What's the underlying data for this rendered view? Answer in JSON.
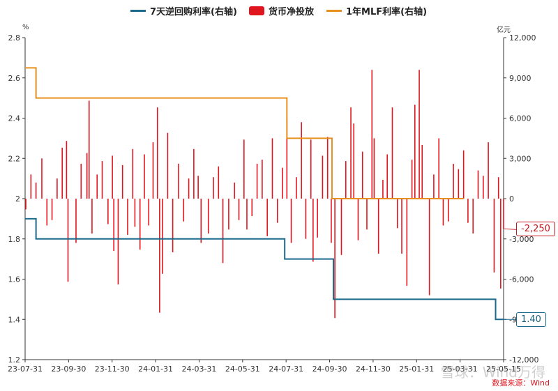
{
  "legend": {
    "repo": "7天逆回购利率(右轴)",
    "net": "货币净投放",
    "mlf": "1年MLF利率(右轴)"
  },
  "units": {
    "left": "%",
    "right": "亿元"
  },
  "source": "数据来源：Wind",
  "watermark": "雪球：Wind万得",
  "callouts": {
    "net_last": "-2,250",
    "repo_last": "1.40"
  },
  "colors": {
    "repo": "#1b6a8c",
    "net": "#e0161f",
    "mlf": "#e8901e",
    "axis": "#333333",
    "grid": "#e6e6e6"
  },
  "chart_data": {
    "type": "bar+line",
    "x_range": [
      "2023-07-31",
      "2025-05-19"
    ],
    "x_ticks": [
      "23-07-31",
      "23-09-30",
      "23-11-30",
      "24-01-31",
      "24-03-31",
      "24-05-31",
      "24-07-31",
      "24-09-30",
      "24-11-30",
      "25-01-31",
      "25-03-31",
      "25-05-15"
    ],
    "y_left": {
      "range": [
        1.2,
        2.8
      ],
      "ticks": [
        "1.2",
        "1.4",
        "1.6",
        "1.8",
        "2",
        "2.2",
        "2.4",
        "2.6",
        "2.8"
      ]
    },
    "y_right": {
      "range": [
        -12000,
        12000
      ],
      "ticks": [
        "-12,000",
        "-9,000",
        "-6,000",
        "-3,000",
        "0",
        "3,000",
        "6,000",
        "9,000",
        "12,000"
      ]
    },
    "series": [
      {
        "name": "7天逆回购利率(右轴)",
        "kind": "step-line",
        "axis": "left",
        "points": [
          [
            "2023-07-31",
            1.9
          ],
          [
            "2023-08-15",
            1.8
          ],
          [
            "2024-07-22",
            1.7
          ],
          [
            "2024-09-27",
            1.5
          ],
          [
            "2025-05-08",
            1.4
          ],
          [
            "2025-05-19",
            1.4
          ]
        ]
      },
      {
        "name": "1年MLF利率(右轴)",
        "kind": "step-line",
        "axis": "left",
        "points": [
          [
            "2023-07-31",
            2.65
          ],
          [
            "2023-08-15",
            2.5
          ],
          [
            "2024-07-25",
            2.3
          ],
          [
            "2024-09-25",
            2.0
          ],
          [
            "2025-03-25",
            2.0
          ]
        ]
      },
      {
        "name": "货币净投放",
        "kind": "bar",
        "axis": "right",
        "points": [
          [
            "2023-08-01",
            -800
          ],
          [
            "2023-08-08",
            1800
          ],
          [
            "2023-08-15",
            1200
          ],
          [
            "2023-08-23",
            3000
          ],
          [
            "2023-08-30",
            -2000
          ],
          [
            "2023-09-06",
            -1600
          ],
          [
            "2023-09-13",
            1500
          ],
          [
            "2023-09-20",
            3800
          ],
          [
            "2023-09-26",
            4300
          ],
          [
            "2023-09-28",
            -6200
          ],
          [
            "2023-10-09",
            -3300
          ],
          [
            "2023-10-16",
            2600
          ],
          [
            "2023-10-24",
            3400
          ],
          [
            "2023-10-27",
            7300
          ],
          [
            "2023-10-31",
            -2600
          ],
          [
            "2023-11-07",
            1800
          ],
          [
            "2023-11-14",
            2800
          ],
          [
            "2023-11-22",
            -1900
          ],
          [
            "2023-11-28",
            3200
          ],
          [
            "2023-11-30",
            -3900
          ],
          [
            "2023-12-06",
            -6400
          ],
          [
            "2023-12-12",
            2500
          ],
          [
            "2023-12-19",
            -2700
          ],
          [
            "2023-12-26",
            3700
          ],
          [
            "2023-12-29",
            -2100
          ],
          [
            "2024-01-05",
            -3800
          ],
          [
            "2024-01-11",
            3300
          ],
          [
            "2024-01-17",
            -2000
          ],
          [
            "2024-01-23",
            4200
          ],
          [
            "2024-01-29",
            6800
          ],
          [
            "2024-02-01",
            -8500
          ],
          [
            "2024-02-05",
            -5600
          ],
          [
            "2024-02-12",
            4900
          ],
          [
            "2024-02-19",
            -4000
          ],
          [
            "2024-02-27",
            2600
          ],
          [
            "2024-03-05",
            -1700
          ],
          [
            "2024-03-12",
            1500
          ],
          [
            "2024-03-19",
            3700
          ],
          [
            "2024-03-25",
            1700
          ],
          [
            "2024-03-29",
            -3300
          ],
          [
            "2024-04-08",
            -2600
          ],
          [
            "2024-04-15",
            1600
          ],
          [
            "2024-04-22",
            2400
          ],
          [
            "2024-04-28",
            -4800
          ],
          [
            "2024-05-06",
            -2300
          ],
          [
            "2024-05-14",
            1200
          ],
          [
            "2024-05-20",
            -1600
          ],
          [
            "2024-05-27",
            4400
          ],
          [
            "2024-05-31",
            -2300
          ],
          [
            "2024-06-07",
            -1300
          ],
          [
            "2024-06-14",
            2600
          ],
          [
            "2024-06-21",
            2900
          ],
          [
            "2024-06-28",
            -2800
          ],
          [
            "2024-07-05",
            4500
          ],
          [
            "2024-07-12",
            -1800
          ],
          [
            "2024-07-19",
            2300
          ],
          [
            "2024-07-25",
            5900
          ],
          [
            "2024-07-31",
            -3300
          ],
          [
            "2024-08-07",
            1600
          ],
          [
            "2024-08-14",
            5700
          ],
          [
            "2024-08-20",
            -3000
          ],
          [
            "2024-08-27",
            4400
          ],
          [
            "2024-08-30",
            -4700
          ],
          [
            "2024-09-05",
            -2900
          ],
          [
            "2024-09-12",
            3200
          ],
          [
            "2024-09-19",
            4600
          ],
          [
            "2024-09-24",
            -3300
          ],
          [
            "2024-09-29",
            -8900
          ],
          [
            "2024-10-08",
            -4200
          ],
          [
            "2024-10-14",
            2800
          ],
          [
            "2024-10-21",
            6800
          ],
          [
            "2024-10-25",
            5600
          ],
          [
            "2024-10-31",
            -3100
          ],
          [
            "2024-11-06",
            3500
          ],
          [
            "2024-11-12",
            -2300
          ],
          [
            "2024-11-19",
            9600
          ],
          [
            "2024-11-22",
            4500
          ],
          [
            "2024-11-28",
            -4100
          ],
          [
            "2024-12-04",
            1400
          ],
          [
            "2024-12-10",
            3300
          ],
          [
            "2024-12-17",
            6800
          ],
          [
            "2024-12-24",
            -2200
          ],
          [
            "2024-12-30",
            -4100
          ],
          [
            "2025-01-06",
            -6500
          ],
          [
            "2025-01-13",
            2900
          ],
          [
            "2025-01-17",
            7000
          ],
          [
            "2025-01-23",
            9600
          ],
          [
            "2025-01-27",
            4000
          ],
          [
            "2025-02-06",
            -7200
          ],
          [
            "2025-02-12",
            1800
          ],
          [
            "2025-02-19",
            4500
          ],
          [
            "2025-02-25",
            -2000
          ],
          [
            "2025-03-04",
            -1700
          ],
          [
            "2025-03-11",
            2600
          ],
          [
            "2025-03-18",
            2200
          ],
          [
            "2025-03-25",
            3600
          ],
          [
            "2025-03-31",
            -1800
          ],
          [
            "2025-04-07",
            -2600
          ],
          [
            "2025-04-14",
            2100
          ],
          [
            "2025-04-21",
            1700
          ],
          [
            "2025-04-28",
            4200
          ],
          [
            "2025-05-06",
            -5500
          ],
          [
            "2025-05-12",
            1600
          ],
          [
            "2025-05-15",
            -6700
          ],
          [
            "2025-05-19",
            -2250
          ]
        ]
      }
    ]
  }
}
